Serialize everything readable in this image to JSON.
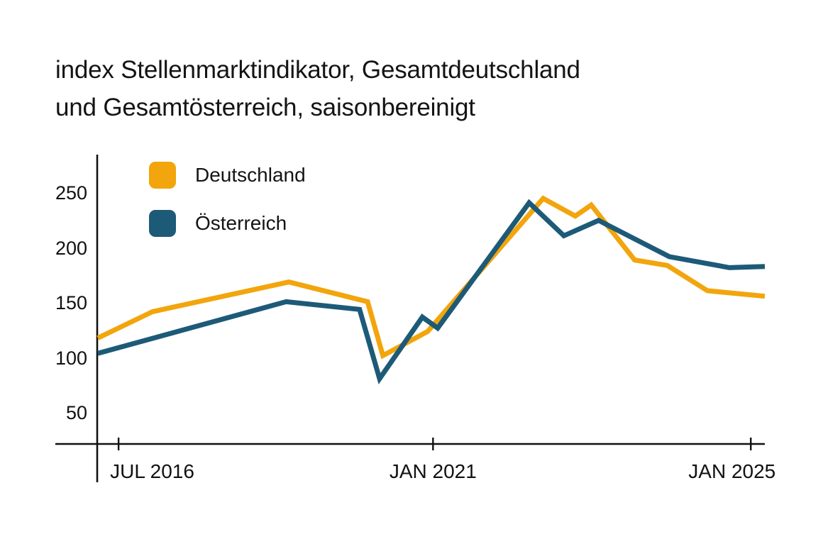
{
  "title": {
    "line1": "index Stellenmarktindikator, Gesamtdeutschland",
    "line2": "und Gesamtösterreich, saisonbereinigt"
  },
  "legend": {
    "items": [
      {
        "label": "Deutschland",
        "color": "#F2A50C"
      },
      {
        "label": "Österreich",
        "color": "#1D5A78"
      }
    ]
  },
  "axis": {
    "color": "#111111"
  },
  "chart_data": {
    "type": "line",
    "title": "index Stellenmarktindikator, Gesamtdeutschland und Gesamtösterreich, saisonbereinigt",
    "xlabel": "",
    "ylabel": "",
    "ylim": [
      40,
      265
    ],
    "yticks": [
      250,
      200,
      150,
      100,
      50
    ],
    "grid": false,
    "legend_position": "top-left-inside",
    "xticks": [
      {
        "label": "JUL 2016",
        "t": 0.032,
        "align": "left"
      },
      {
        "label": "JAN 2021",
        "t": 0.503,
        "align": "center"
      },
      {
        "label": "JAN 2025",
        "t": 0.979,
        "align": "right"
      }
    ],
    "series": [
      {
        "name": "Deutschland",
        "color": "#F2A50C",
        "points": [
          {
            "date": "JAN 2016",
            "t": 0.001,
            "value": 118
          },
          {
            "date": "JAN 2017",
            "t": 0.083,
            "value": 142
          },
          {
            "date": "DEZ 2018",
            "t": 0.287,
            "value": 169
          },
          {
            "date": "FEB 2020",
            "t": 0.405,
            "value": 151
          },
          {
            "date": "MAI 2020",
            "t": 0.428,
            "value": 102
          },
          {
            "date": "DEZ 2020",
            "t": 0.495,
            "value": 124
          },
          {
            "date": "MAI 2022",
            "t": 0.668,
            "value": 245
          },
          {
            "date": "OKT 2022",
            "t": 0.716,
            "value": 229
          },
          {
            "date": "JAN 2023",
            "t": 0.74,
            "value": 239
          },
          {
            "date": "JUL 2023",
            "t": 0.805,
            "value": 189
          },
          {
            "date": "DEZ 2023",
            "t": 0.854,
            "value": 184
          },
          {
            "date": "JUN 2024",
            "t": 0.914,
            "value": 161
          },
          {
            "date": "MRZ 2025",
            "t": 1.0,
            "value": 156
          }
        ]
      },
      {
        "name": "Österreich",
        "color": "#1D5A78",
        "points": [
          {
            "date": "JAN 2016",
            "t": 0.001,
            "value": 104
          },
          {
            "date": "NOV 2018",
            "t": 0.283,
            "value": 151
          },
          {
            "date": "DEZ 2019",
            "t": 0.393,
            "value": 144
          },
          {
            "date": "APR 2020",
            "t": 0.423,
            "value": 81
          },
          {
            "date": "NOV 2020",
            "t": 0.487,
            "value": 137
          },
          {
            "date": "FEB 2021",
            "t": 0.51,
            "value": 127
          },
          {
            "date": "MRZ 2022",
            "t": 0.647,
            "value": 241
          },
          {
            "date": "SEP 2022",
            "t": 0.699,
            "value": 211
          },
          {
            "date": "FEB 2023",
            "t": 0.751,
            "value": 225
          },
          {
            "date": "JAN 2024",
            "t": 0.857,
            "value": 192
          },
          {
            "date": "OKT 2024",
            "t": 0.947,
            "value": 182
          },
          {
            "date": "MRZ 2025",
            "t": 1.0,
            "value": 183
          }
        ]
      }
    ]
  }
}
